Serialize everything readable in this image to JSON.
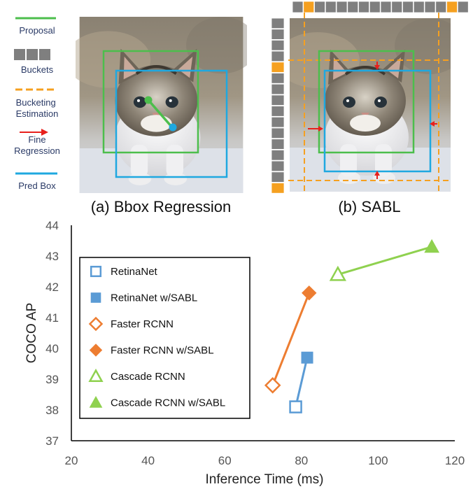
{
  "top_legend": [
    {
      "id": "proposal",
      "label": "Proposal",
      "color": "#4cbe4c"
    },
    {
      "id": "buckets",
      "label": "Buckets",
      "color": "#7f7f7f"
    },
    {
      "id": "bucketing",
      "label": "Bucketing Estimation",
      "color": "#f5a020"
    },
    {
      "id": "fine",
      "label": "Fine Regression",
      "color": "#e8201c"
    },
    {
      "id": "pred",
      "label": "Pred Box",
      "color": "#1fa8e0"
    }
  ],
  "panels": {
    "a_caption": "(a) Bbox Regression",
    "b_caption": "(b) SABL"
  },
  "chart_data": {
    "type": "line",
    "xlabel": "Inference Time (ms)",
    "ylabel": "COCO AP",
    "xlim": [
      20,
      120
    ],
    "ylim": [
      37,
      44
    ],
    "xticks": [
      20,
      40,
      60,
      80,
      100,
      120
    ],
    "yticks": [
      37,
      38,
      39,
      40,
      41,
      42,
      43,
      44
    ],
    "grid": false,
    "legend_position": "top-left",
    "series": [
      {
        "name": "RetinaNet",
        "marker": "square-open",
        "color": "#5b9bd5",
        "x": [
          78.5
        ],
        "y": [
          38.1
        ]
      },
      {
        "name": "RetinaNet w/SABL",
        "marker": "square-filled",
        "color": "#5b9bd5",
        "x": [
          81.5
        ],
        "y": [
          39.7
        ]
      },
      {
        "name": "Faster RCNN",
        "marker": "diamond-open",
        "color": "#ed7d31",
        "x": [
          72.5
        ],
        "y": [
          38.8
        ]
      },
      {
        "name": "Faster RCNN w/SABL",
        "marker": "diamond-filled",
        "color": "#ed7d31",
        "x": [
          82
        ],
        "y": [
          41.8
        ]
      },
      {
        "name": "Cascade RCNN",
        "marker": "triangle-open",
        "color": "#8fd14f",
        "x": [
          89.5
        ],
        "y": [
          42.4
        ]
      },
      {
        "name": "Cascade RCNN w/SABL",
        "marker": "triangle-filled",
        "color": "#8fd14f",
        "x": [
          114
        ],
        "y": [
          43.3
        ]
      }
    ],
    "connections": [
      {
        "from": "RetinaNet",
        "to": "RetinaNet w/SABL",
        "color": "#5b9bd5"
      },
      {
        "from": "Faster RCNN",
        "to": "Faster RCNN w/SABL",
        "color": "#ed7d31"
      },
      {
        "from": "Cascade RCNN",
        "to": "Cascade RCNN w/SABL",
        "color": "#8fd14f"
      }
    ]
  }
}
